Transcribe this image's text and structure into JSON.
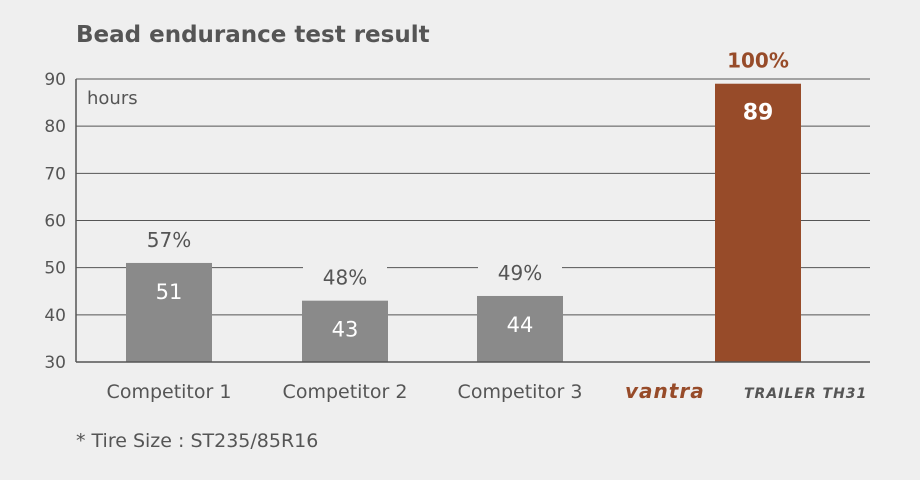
{
  "chart_data": {
    "type": "bar",
    "title": "Bead endurance test result",
    "unit_label": "hours",
    "ylim": [
      30,
      90
    ],
    "yticks": [
      30,
      40,
      50,
      60,
      70,
      80,
      90
    ],
    "grid": true,
    "categories": [
      "Competitor 1",
      "Competitor 2",
      "Competitor 3",
      "VANTRA TRAILER TH31"
    ],
    "values": [
      51,
      43,
      44,
      89
    ],
    "value_labels": [
      "51",
      "43",
      "44",
      "89"
    ],
    "percent_labels": [
      "57%",
      "48%",
      "49%",
      "100%"
    ],
    "colors": {
      "competitor": "#8a8a8a",
      "highlight": "#974b29",
      "axis_text": "#555555",
      "grid": "#555555"
    },
    "highlight_index": 3,
    "brand": {
      "name": "vantra",
      "model": "TRAILER TH31"
    }
  },
  "footnote": "* Tire Size : ST235/85R16"
}
